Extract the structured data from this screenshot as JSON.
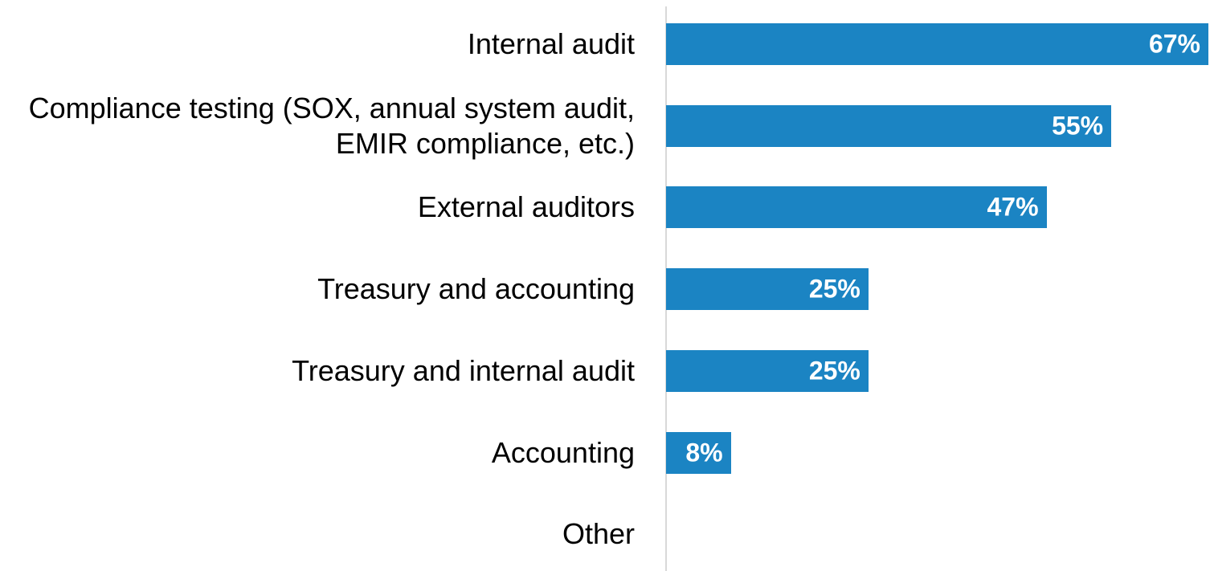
{
  "chart_data": {
    "type": "bar",
    "orientation": "horizontal",
    "categories": [
      "Internal audit",
      "Compliance testing (SOX, annual system audit, EMIR compliance, etc.)",
      "External auditors",
      "Treasury and accounting",
      "Treasury and internal audit",
      "Accounting",
      "Other"
    ],
    "values": [
      67,
      55,
      47,
      25,
      25,
      8,
      null
    ],
    "value_labels": [
      "67%",
      "55%",
      "47%",
      "25%",
      "25%",
      "8%",
      null
    ],
    "color": "#1b84c3",
    "xlim": [
      0,
      67
    ]
  }
}
